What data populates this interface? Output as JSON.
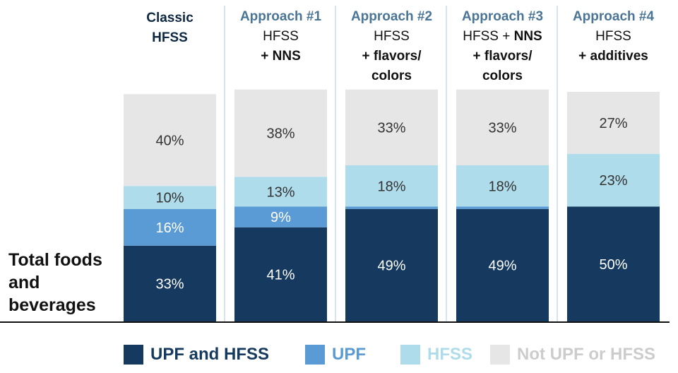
{
  "chart_data": {
    "type": "bar",
    "stacked": true,
    "row_label": "Total foods and beverages",
    "categories": [
      {
        "lines": [
          [
            {
              "t": "Classic",
              "s": "classic"
            }
          ],
          [
            {
              "t": "HFSS",
              "s": "classic"
            }
          ]
        ]
      },
      {
        "lines": [
          [
            {
              "t": "Approach #1",
              "s": "approach"
            }
          ],
          [
            {
              "t": "HFSS",
              "s": "normal"
            }
          ],
          [
            {
              "t": "+ NNS",
              "s": "bold"
            }
          ]
        ]
      },
      {
        "lines": [
          [
            {
              "t": "Approach #2",
              "s": "approach"
            }
          ],
          [
            {
              "t": "HFSS",
              "s": "normal"
            }
          ],
          [
            {
              "t": "+ flavors/",
              "s": "bold"
            }
          ],
          [
            {
              "t": "colors",
              "s": "bold"
            }
          ]
        ]
      },
      {
        "lines": [
          [
            {
              "t": "Approach #3",
              "s": "approach"
            }
          ],
          [
            {
              "t": "HFSS + ",
              "s": "normal"
            },
            {
              "t": "NNS",
              "s": "bold"
            }
          ],
          [
            {
              "t": "+ flavors/",
              "s": "bold"
            }
          ],
          [
            {
              "t": "colors",
              "s": "bold"
            }
          ]
        ]
      },
      {
        "lines": [
          [
            {
              "t": "Approach #4",
              "s": "approach"
            }
          ],
          [
            {
              "t": "HFSS",
              "s": "normal"
            }
          ],
          [
            {
              "t": "+ additives",
              "s": "bold"
            }
          ]
        ]
      }
    ],
    "series": [
      {
        "name": "UPF and HFSS",
        "color": "#163a5f",
        "label_color": "#ffffff",
        "values": [
          33,
          41,
          49,
          49,
          50
        ],
        "labels": [
          "33%",
          "41%",
          "49%",
          "49%",
          "50%"
        ]
      },
      {
        "name": "UPF",
        "color": "#5b9bd5",
        "label_color": "#ffffff",
        "values": [
          16,
          9,
          1,
          1,
          0
        ],
        "labels": [
          "16%",
          "9%",
          "",
          "",
          ""
        ]
      },
      {
        "name": "HFSS",
        "color": "#aedcea",
        "label_color": "#333333",
        "values": [
          10,
          13,
          18,
          18,
          23
        ],
        "labels": [
          "10%",
          "13%",
          "18%",
          "18%",
          "23%"
        ]
      },
      {
        "name": "Not UPF or HFSS",
        "color": "#e6e6e6",
        "label_color": "#333333",
        "values": [
          40,
          38,
          33,
          33,
          27
        ],
        "labels": [
          "40%",
          "38%",
          "33%",
          "33%",
          "27%"
        ]
      }
    ],
    "legend": [
      {
        "label": "UPF and HFSS",
        "color": "#163a5f",
        "text_color": "#163a5f"
      },
      {
        "label": "UPF",
        "color": "#5b9bd5",
        "text_color": "#5b9bd5"
      },
      {
        "label": "HFSS",
        "color": "#aedcea",
        "text_color": "#aedcea"
      },
      {
        "label": "Not UPF or HFSS",
        "color": "#e6e6e6",
        "text_color": "#cccccc"
      }
    ],
    "legend_position": "bottom",
    "ylim": [
      0,
      100
    ],
    "grid": false
  }
}
